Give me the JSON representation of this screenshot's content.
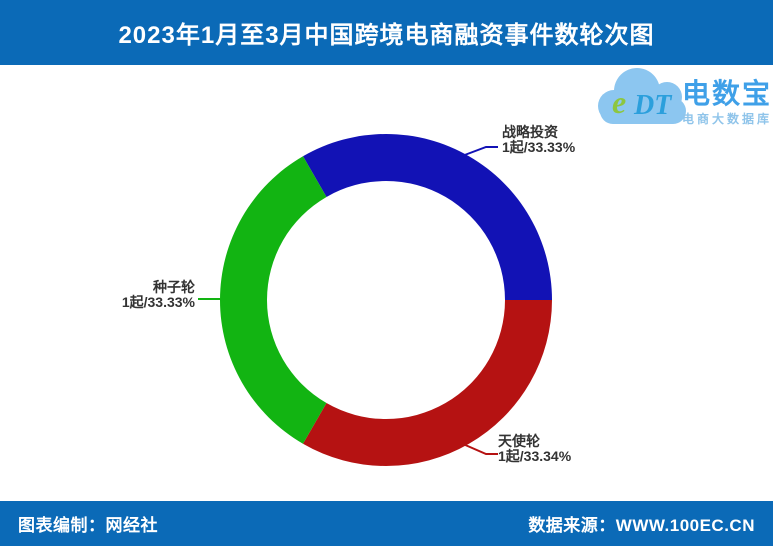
{
  "banner": {
    "title": "2023年1月至3月中国跨境电商融资事件数轮次图",
    "bg_color": "#0b6ab7",
    "text_color": "#ffffff"
  },
  "logo": {
    "cloud_letter_e": "e",
    "cloud_letters_dt": "DT",
    "name": "电数宝",
    "subtitle": "电商大数据库",
    "cloud_color": "#8cc6f0",
    "name_color": "#3fa0e8"
  },
  "chart_data": {
    "type": "pie",
    "donut": true,
    "title": "2023年1月至3月中国跨境电商融资事件数轮次图",
    "start_angle_deg": -30,
    "legend_position": "none",
    "slices": [
      {
        "label": "战略投资",
        "value": 1,
        "pct": 33.33,
        "value_label": "1起/33.33%",
        "color": "#1212b5"
      },
      {
        "label": "天使轮",
        "value": 1,
        "pct": 33.34,
        "value_label": "1起/33.34%",
        "color": "#b51212"
      },
      {
        "label": "种子轮",
        "value": 1,
        "pct": 33.33,
        "value_label": "1起/33.33%",
        "color": "#12b412"
      }
    ]
  },
  "footer": {
    "left": "图表编制：网经社",
    "right": "数据来源：WWW.100EC.CN",
    "bg_color": "#0b6ab7"
  }
}
